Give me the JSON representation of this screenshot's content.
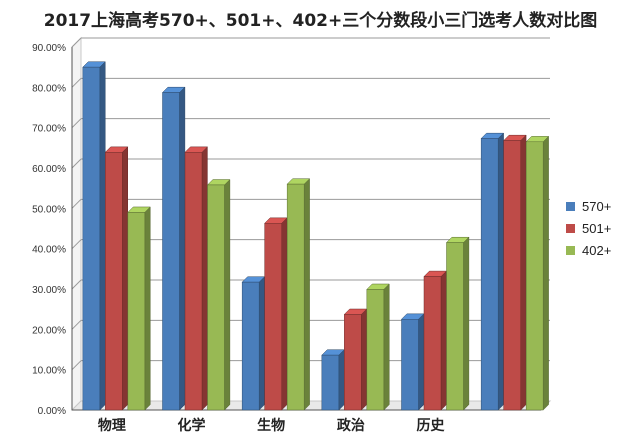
{
  "chart_data": {
    "type": "bar",
    "title": "2017上海高考570+、501+、402+三个分数段小三门选考人数对比图",
    "categories": [
      "物理",
      "化学",
      "生物",
      "政治",
      "历史",
      ""
    ],
    "series": [
      {
        "name": "570+",
        "values": [
          85.0,
          78.7,
          31.7,
          13.6,
          22.5,
          67.3
        ],
        "color": "#4a7ebb"
      },
      {
        "name": "501+",
        "values": [
          63.9,
          63.9,
          46.3,
          23.7,
          33.1,
          66.8
        ],
        "color": "#be4b48"
      },
      {
        "name": "402+",
        "values": [
          49.0,
          55.8,
          56.0,
          29.9,
          41.5,
          66.5
        ],
        "color": "#98b954"
      }
    ],
    "ylim": [
      0,
      90
    ],
    "yticks": [
      "0.00%",
      "10.00%",
      "20.00%",
      "30.00%",
      "40.00%",
      "50.00%",
      "60.00%",
      "70.00%",
      "80.00%",
      "90.00%"
    ],
    "grid": true,
    "legend": "right",
    "xlabel": "",
    "ylabel": ""
  }
}
